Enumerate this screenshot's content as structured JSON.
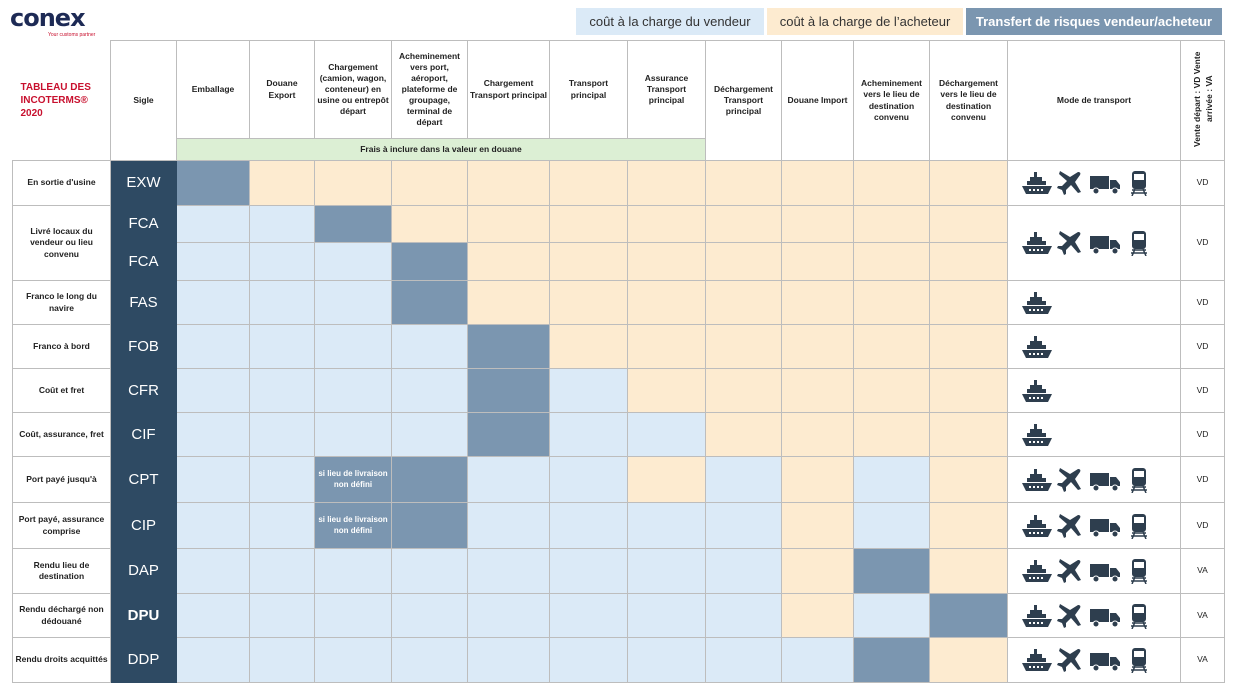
{
  "logo": {
    "word": "conex",
    "tagline": "Your customs partner"
  },
  "legend": {
    "seller": "coût à la charge du vendeur",
    "buyer": "coût à la charge de l’acheteur",
    "risk": "Transfert de risques vendeur/acheteur"
  },
  "colors": {
    "seller": "#dbeaf7",
    "buyer": "#fdebd0",
    "risk": "#7b96b0",
    "sigle": "#2e4a63",
    "customs_band": "#dcefd4",
    "title": "#c8102e"
  },
  "header": {
    "title": "TABLEAU DES INCOTERMS® 2020",
    "sigle": "Sigle",
    "columns": [
      "Emballage",
      "Douane Export",
      "Chargement (camion, wagon, conteneur) en usine ou entrepôt départ",
      "Acheminement vers port, aéroport, plateforme de groupage, terminal de départ",
      "Chargement Transport principal",
      "Transport principal",
      "Assurance Transport principal",
      "Déchargement Transport principal",
      "Douane Import",
      "Acheminement vers le lieu de destination convenu",
      "Déchargement vers le lieu de destination convenu"
    ],
    "customs_band": "Frais à inclure dans la valeur en douane",
    "mode": "Mode de transport",
    "sale_type": "Vente départ : VD Vente arrivée : VA"
  },
  "note_text": "si lieu de livraison non défini",
  "rows": [
    {
      "label": "En sortie d'usine",
      "sigle": "EXW",
      "cells": "RBBBBBBBBBB",
      "modes": [
        "ship",
        "plane",
        "truck",
        "train"
      ],
      "sale": "VD"
    },
    {
      "label": "Livré locaux du vendeur ou lieu convenu",
      "sigle": "FCA",
      "cells": "SSRBBBBBBBB",
      "modes": [
        "ship",
        "plane",
        "truck",
        "train"
      ],
      "sale": "VD",
      "span": 2
    },
    {
      "sigle": "FCA",
      "cells": "SSSRBBBBBBB"
    },
    {
      "label": "Franco le long du navire",
      "sigle": "FAS",
      "cells": "SSSRBBBBBBB",
      "modes": [
        "ship"
      ],
      "sale": "VD"
    },
    {
      "label": "Franco à bord",
      "sigle": "FOB",
      "cells": "SSSSRBBBBBB",
      "modes": [
        "ship"
      ],
      "sale": "VD"
    },
    {
      "label": "Coût et fret",
      "sigle": "CFR",
      "cells": "SSSSRSBBBBB",
      "modes": [
        "ship"
      ],
      "sale": "VD"
    },
    {
      "label": "Coût, assurance, fret",
      "sigle": "CIF",
      "cells": "SSSSRSSBBBB",
      "modes": [
        "ship"
      ],
      "sale": "VD"
    },
    {
      "label": "Port payé jusqu'à",
      "sigle": "CPT",
      "cells": "SSNRSSBSBSB",
      "modes": [
        "ship",
        "plane",
        "truck",
        "train"
      ],
      "sale": "VD"
    },
    {
      "label": "Port payé, assurance comprise",
      "sigle": "CIP",
      "cells": "SSNRSSSSBSB",
      "modes": [
        "ship",
        "plane",
        "truck",
        "train"
      ],
      "sale": "VD"
    },
    {
      "label": "Rendu lieu de destination",
      "sigle": "DAP",
      "cells": "SSSSSSSSBRB",
      "modes": [
        "ship",
        "plane",
        "truck",
        "train"
      ],
      "sale": "VA"
    },
    {
      "label": "Rendu déchargé non dédouané",
      "sigle": "DPU",
      "cells": "SSSSSSSSBSR",
      "modes": [
        "ship",
        "plane",
        "truck",
        "train"
      ],
      "sale": "VA",
      "bold": true
    },
    {
      "label": "Rendu droits acquittés",
      "sigle": "DDP",
      "cells": "SSSSSSSSSRB",
      "modes": [
        "ship",
        "plane",
        "truck",
        "train"
      ],
      "sale": "VA"
    }
  ]
}
